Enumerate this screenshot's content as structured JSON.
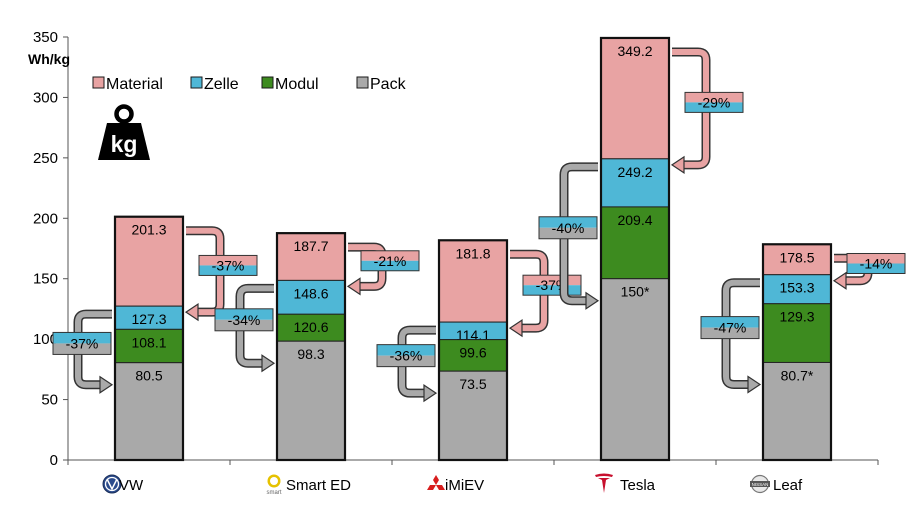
{
  "chart_data": {
    "type": "bar",
    "ylabel": "Wh/kg",
    "ylim": [
      0,
      350
    ],
    "yticks": [
      0,
      50,
      100,
      150,
      200,
      250,
      300,
      350
    ],
    "grid": false,
    "legend": [
      "Material",
      "Zelle",
      "Modul",
      "Pack"
    ],
    "legend_position": "top-left",
    "categories": [
      "VW",
      "Smart ED",
      "iMiEV",
      "Tesla",
      "Leaf"
    ],
    "series": [
      {
        "name": "Material",
        "color": "#e8a3a3",
        "values": [
          201.3,
          187.7,
          181.8,
          349.2,
          178.5
        ],
        "labels": [
          "201.3",
          "187.7",
          "181.8",
          "349.2",
          "178.5"
        ]
      },
      {
        "name": "Zelle",
        "color": "#4fb7d6",
        "values": [
          127.3,
          148.6,
          114.1,
          249.2,
          153.3
        ],
        "labels": [
          "127.3",
          "148.6",
          "114.1",
          "249.2",
          "153.3"
        ]
      },
      {
        "name": "Modul",
        "color": "#3d8b1f",
        "values": [
          108.1,
          120.6,
          99.6,
          209.4,
          129.3
        ],
        "labels": [
          "108.1",
          "120.6",
          "99.6",
          "209.4",
          "129.3"
        ]
      },
      {
        "name": "Pack",
        "color": "#a9a9a9",
        "values": [
          80.5,
          98.3,
          73.5,
          150,
          80.7
        ],
        "labels": [
          "80.5",
          "98.3",
          "73.5",
          "150*",
          "80.7*"
        ]
      }
    ],
    "reductions": {
      "material_to_cell": [
        "-37%",
        "-21%",
        "-37%",
        "-29%",
        "-14%"
      ],
      "module_to_pack": [
        "-37%",
        "-34%",
        "-36%",
        "-40%",
        "-47%"
      ]
    },
    "colors": {
      "material": "#e8a3a3",
      "cell": "#4fb7d6",
      "module": "#3d8b1f",
      "pack": "#a9a9a9",
      "arrow_red": "#e8a3a3",
      "arrow_blue": "#4fb7d6",
      "arrow_gray": "#a9a9a9",
      "outline": "#1a1a1a"
    },
    "brand_icons": [
      "vw-logo-icon",
      "smart-logo-icon",
      "mitsubishi-logo-icon",
      "tesla-logo-icon",
      "nissan-logo-icon"
    ],
    "weight_icon": "kg-weight-icon",
    "brand_texts": {
      "smart": "smart",
      "nissan": "NISSAN",
      "weight": "kg"
    }
  }
}
